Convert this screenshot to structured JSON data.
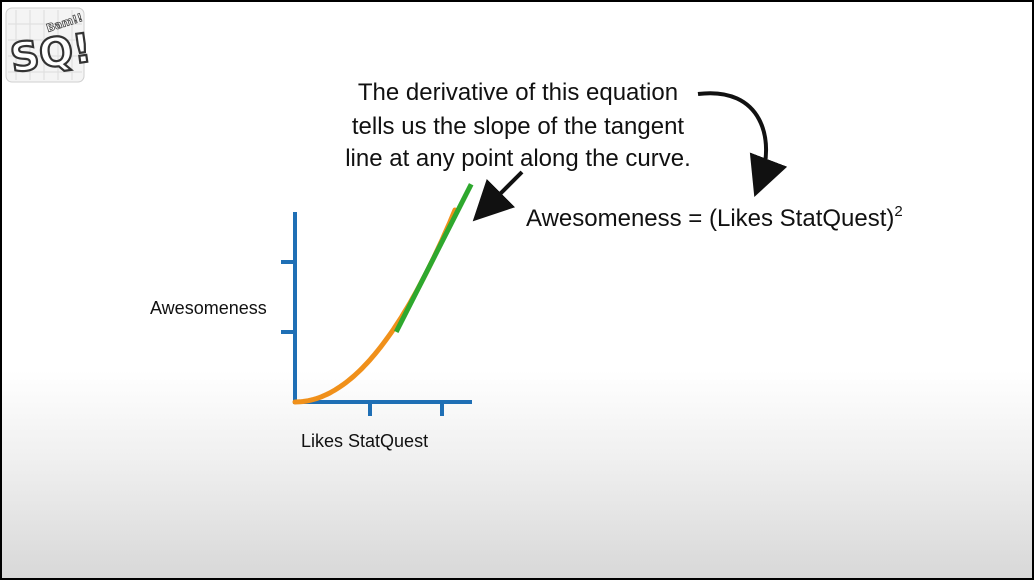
{
  "logo": {
    "letters": "SQ!",
    "tagline": "Bam!!"
  },
  "annotation": {
    "lines": [
      "The derivative of this equation",
      "tells us the slope of the tangent",
      "line at any point along the curve."
    ]
  },
  "equation": {
    "text": "Awesomeness = (Likes StatQuest)",
    "exponent": "2"
  },
  "chart_data": {
    "type": "line",
    "ylabel": "Awesomeness",
    "xlabel": "Likes StatQuest",
    "x_ticks": 3,
    "y_ticks": 3,
    "curve": {
      "equation": "y = x^2",
      "color": "#f0901a"
    },
    "tangent": {
      "color": "#2ea82e"
    },
    "axis_color": "#1f6fb5"
  }
}
